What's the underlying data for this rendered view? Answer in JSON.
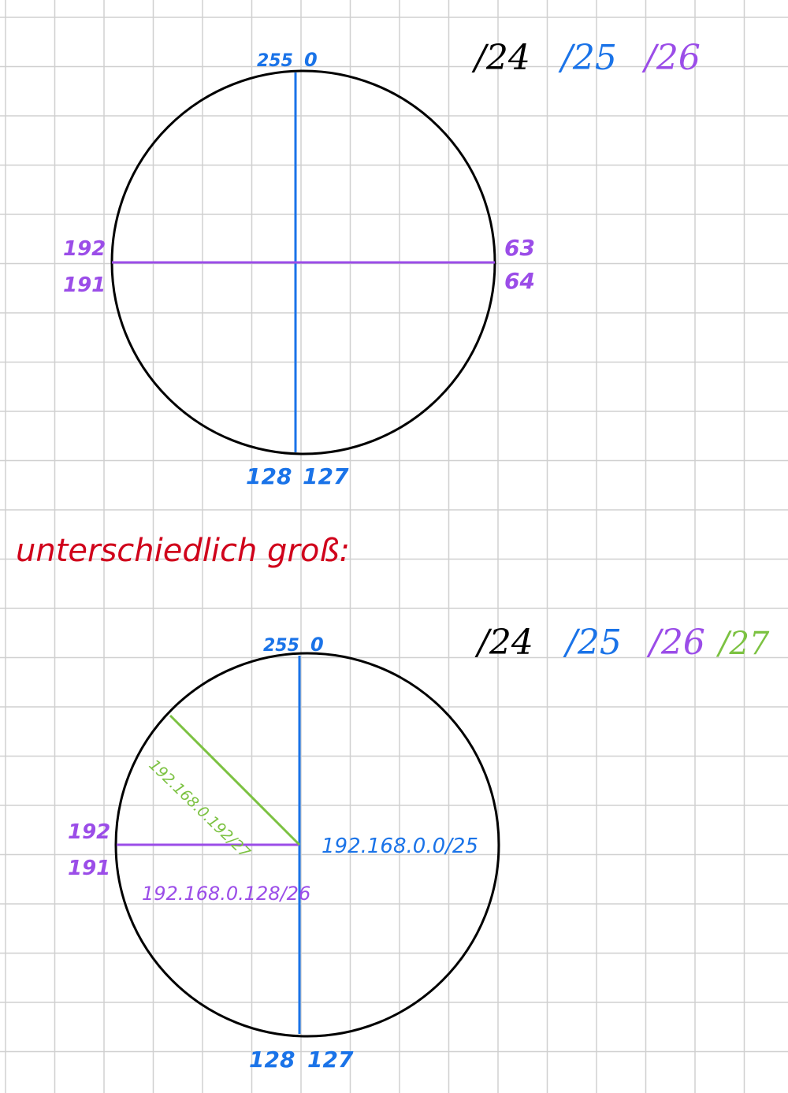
{
  "colors": {
    "background": "#ffffff",
    "grid": "#d0d0d0",
    "black": "#000000",
    "blue": "#1a73e8",
    "purple": "#9b4de8",
    "green": "#7cc242",
    "red": "#d0021b"
  },
  "diagram1": {
    "prefix_labels": [
      "/24",
      "/25",
      "/26"
    ],
    "top_left_label": "255",
    "top_right_label": "0",
    "bottom_left_label": "128",
    "bottom_right_label": "127",
    "left_upper_label": "192",
    "left_lower_label": "191",
    "right_upper_label": "63",
    "right_lower_label": "64"
  },
  "heading": "unterschiedlich groß:",
  "diagram2": {
    "prefix_labels": [
      "/24",
      "/25",
      "/26",
      "/27"
    ],
    "top_left_label": "255",
    "top_right_label": "0",
    "bottom_left_label": "128",
    "bottom_right_label": "127",
    "left_upper_label": "192",
    "left_lower_label": "191",
    "subnet_25": "192.168.0.0/25",
    "subnet_26": "192.168.0.128/26",
    "subnet_27": "192.168.0.192/27"
  }
}
